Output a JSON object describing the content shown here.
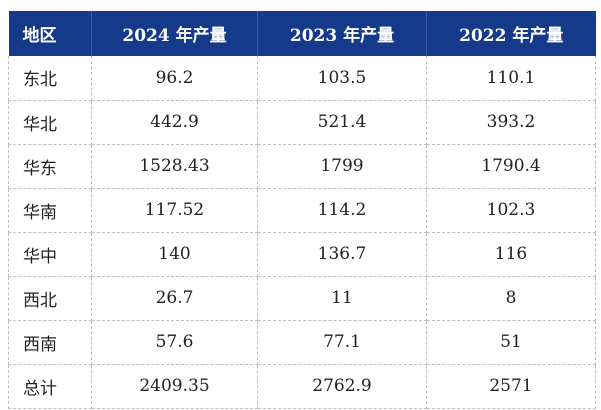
{
  "table": {
    "headers": [
      "地区",
      "2024 年产量",
      "2023 年产量",
      "2022 年产量"
    ],
    "rows": [
      [
        "东北",
        "96.2",
        "103.5",
        "110.1"
      ],
      [
        "华北",
        "442.9",
        "521.4",
        "393.2"
      ],
      [
        "华东",
        "1528.43",
        "1799",
        "1790.4"
      ],
      [
        "华南",
        "117.52",
        "114.2",
        "102.3"
      ],
      [
        "华中",
        "140",
        "136.7",
        "116"
      ],
      [
        "西北",
        "26.7",
        "11",
        "8"
      ],
      [
        "西南",
        "57.6",
        "77.1",
        "51"
      ],
      [
        "总计",
        "2409.35",
        "2762.9",
        "2571"
      ]
    ]
  },
  "colors": {
    "header_bg": "#163a8a",
    "header_text": "#ffffff",
    "grid_line": "#bdbdbd"
  }
}
